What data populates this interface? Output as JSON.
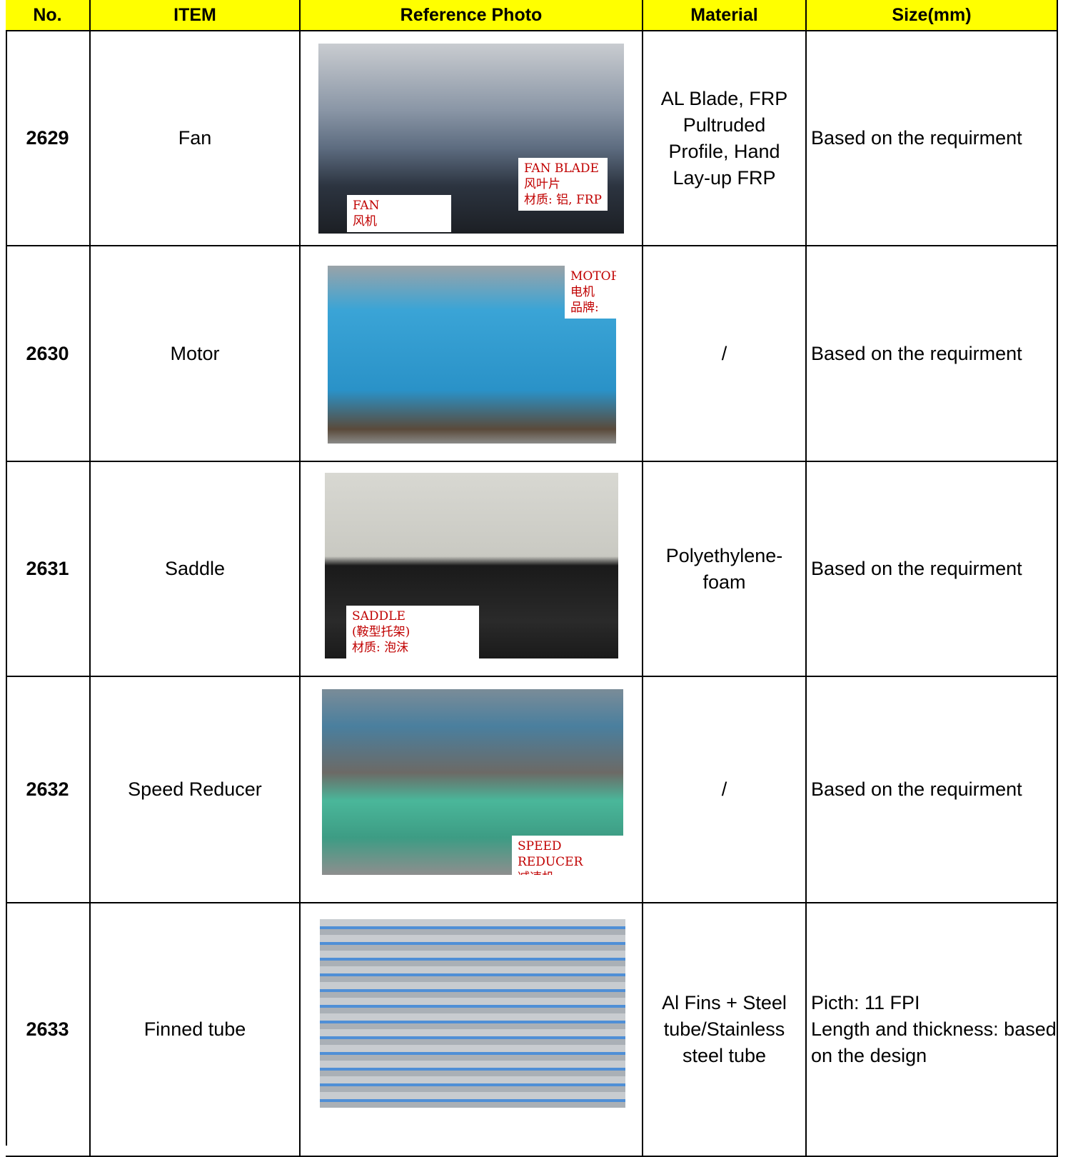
{
  "table": {
    "columns": [
      "No.",
      "ITEM",
      "Reference Photo",
      "Material",
      "Size(mm)"
    ],
    "rows": [
      {
        "no": "2629",
        "item": "Fan",
        "photo_labels": [
          [
            "FAN BLADE",
            "风叶片",
            "材质: 铝, FRP"
          ],
          [
            "FAN",
            "风机"
          ]
        ],
        "material": "AL Blade, FRP Pultruded Profile, Hand Lay-up FRP",
        "size": [
          "Based on the requirment"
        ]
      },
      {
        "no": "2630",
        "item": "Motor",
        "photo_labels": [
          [
            "MOTOR",
            "电机",
            "品牌:"
          ]
        ],
        "material": "/",
        "size": [
          "Based on the requirment"
        ]
      },
      {
        "no": "2631",
        "item": "Saddle",
        "photo_labels": [
          [
            "SADDLE",
            "(鞍型托架)",
            "材质: 泡沫"
          ]
        ],
        "material": "Polyethylene-foam",
        "size": [
          "Based on the requirment"
        ]
      },
      {
        "no": "2632",
        "item": "Speed Reducer",
        "photo_labels": [
          [
            "SPEED REDUCER",
            "减速机"
          ]
        ],
        "material": "/",
        "size": [
          "Based on the requirment"
        ]
      },
      {
        "no": "2633",
        "item": "Finned tube",
        "photo_labels": [],
        "material": "Al Fins + Steel tube/Stainless steel tube",
        "size": [
          "Picth: 11 FPI",
          "Length and thickness: based on the design"
        ]
      }
    ]
  }
}
